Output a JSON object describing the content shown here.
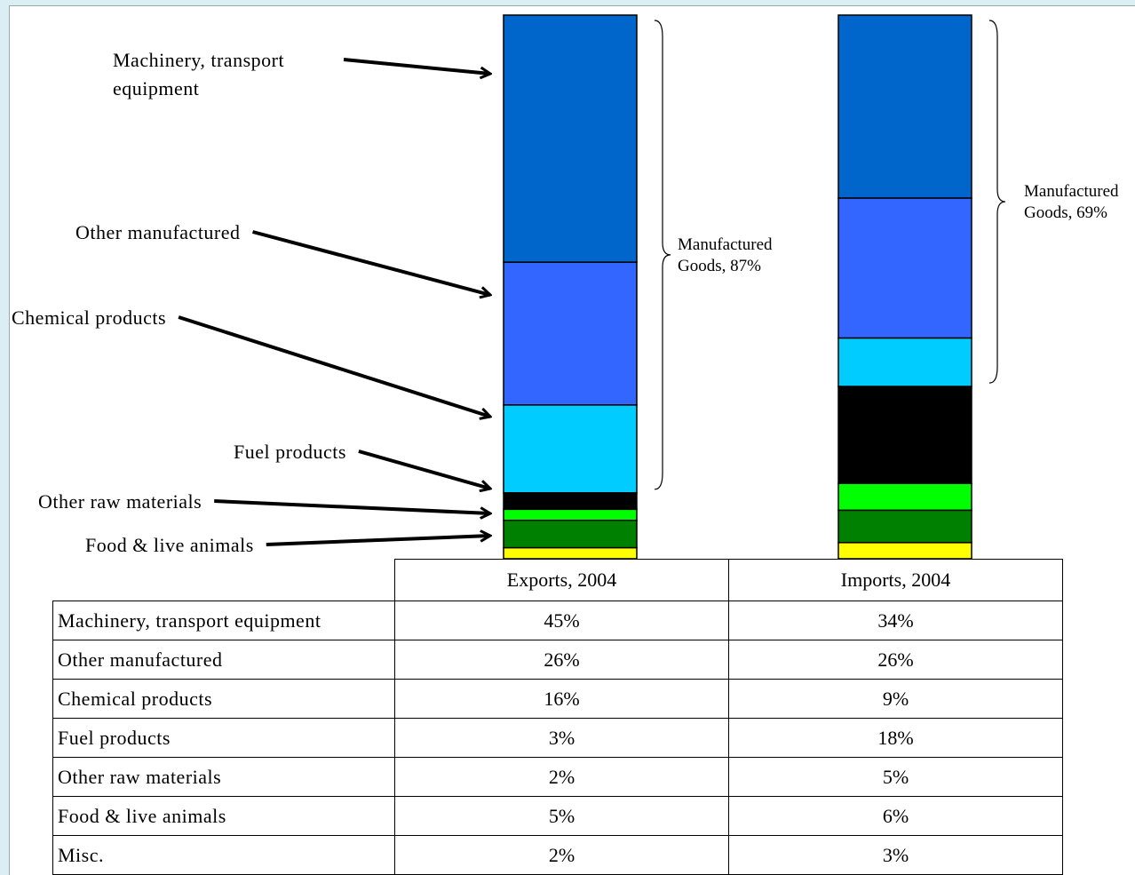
{
  "chart_data": {
    "type": "bar",
    "stacked": true,
    "categories": [
      "Exports, 2004",
      "Imports, 2004"
    ],
    "series": [
      {
        "name": "Machinery, transport equipment",
        "values": [
          45,
          34
        ],
        "color": "#0066cc"
      },
      {
        "name": "Other manufactured",
        "values": [
          26,
          26
        ],
        "color": "#3366ff"
      },
      {
        "name": "Chemical products",
        "values": [
          16,
          9
        ],
        "color": "#00ccff"
      },
      {
        "name": "Fuel products",
        "values": [
          3,
          18
        ],
        "color": "#000000"
      },
      {
        "name": "Other raw materials",
        "values": [
          2,
          5
        ],
        "color": "#00ff00"
      },
      {
        "name": "Food & live animals",
        "values": [
          5,
          6
        ],
        "color": "#008000"
      },
      {
        "name": "Misc.",
        "values": [
          2,
          3
        ],
        "color": "#ffff00"
      }
    ],
    "annotations": [
      {
        "text": [
          "Manufactured",
          "Goods, 87%"
        ],
        "bar": "Exports, 2004"
      },
      {
        "text": [
          "Manufactured",
          "Goods, 69%"
        ],
        "bar": "Imports, 2004"
      }
    ],
    "unit": "%"
  },
  "table": {
    "headers": [
      "Exports, 2004",
      "Imports, 2004"
    ],
    "rows": [
      {
        "label": "Machinery, transport equipment",
        "exports": "45%",
        "imports": "34%"
      },
      {
        "label": "Other manufactured",
        "exports": "26%",
        "imports": "26%"
      },
      {
        "label": "Chemical products",
        "exports": "16%",
        "imports": "9%"
      },
      {
        "label": "Fuel products",
        "exports": "3%",
        "imports": "18%"
      },
      {
        "label": "Other raw materials",
        "exports": "2%",
        "imports": "5%"
      },
      {
        "label": "Food & live animals",
        "exports": "5%",
        "imports": "6%"
      },
      {
        "label": "Misc.",
        "exports": "2%",
        "imports": "3%"
      }
    ]
  },
  "arrow_labels": [
    {
      "lines": [
        "Machinery, transport",
        "equipment"
      ]
    },
    {
      "lines": [
        "Other manufactured"
      ]
    },
    {
      "lines": [
        "Chemical products"
      ]
    },
    {
      "lines": [
        "Fuel products"
      ]
    },
    {
      "lines": [
        "Other raw materials"
      ]
    },
    {
      "lines": [
        "Food & live animals"
      ]
    }
  ]
}
